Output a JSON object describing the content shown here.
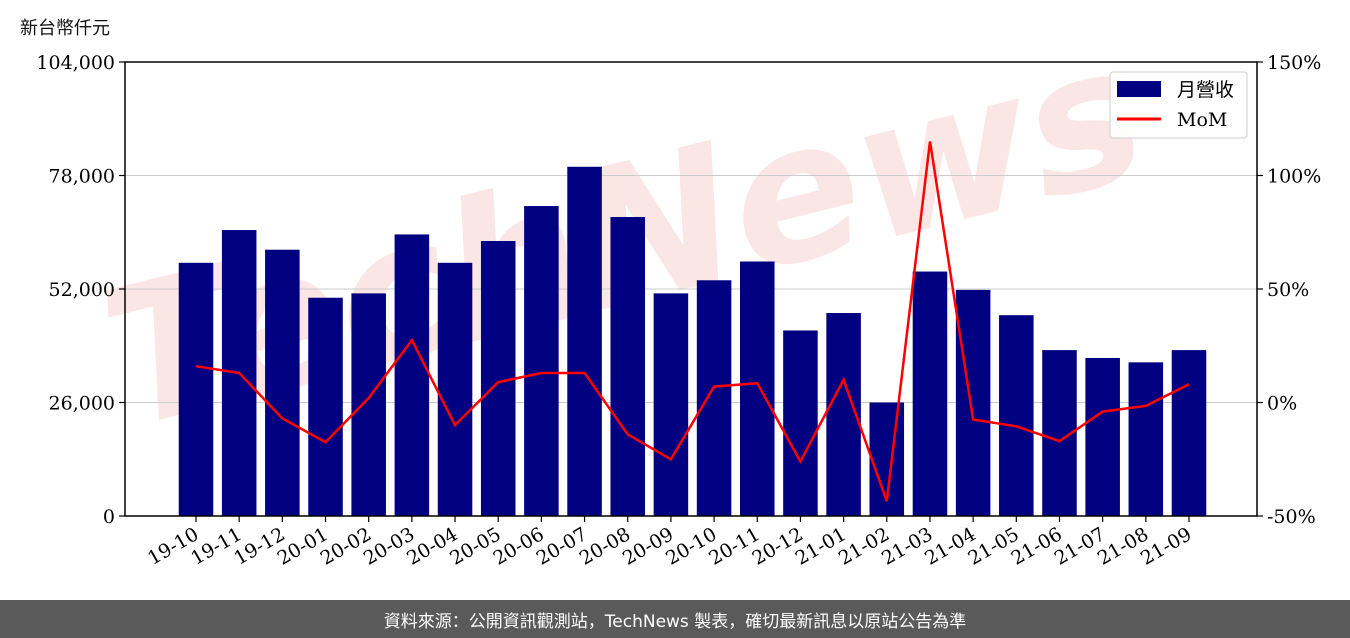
{
  "chart_data": {
    "type": "bar",
    "y_unit_label": "新台幣仟元",
    "categories": [
      "19-10",
      "19-11",
      "19-12",
      "20-01",
      "20-02",
      "20-03",
      "20-04",
      "20-05",
      "20-06",
      "20-07",
      "20-08",
      "20-09",
      "20-10",
      "20-11",
      "20-12",
      "21-01",
      "21-02",
      "21-03",
      "21-04",
      "21-05",
      "21-06",
      "21-07",
      "21-08",
      "21-09"
    ],
    "series": [
      {
        "name": "月營收",
        "type": "bar",
        "axis": "left",
        "color": "#000080",
        "values": [
          58000,
          65500,
          61000,
          50000,
          51000,
          64500,
          58000,
          63000,
          71000,
          80000,
          68500,
          51000,
          54000,
          58300,
          42500,
          46500,
          26000,
          56000,
          51800,
          46000,
          38000,
          36200,
          35200,
          38000
        ]
      },
      {
        "name": "MoM",
        "type": "line",
        "axis": "right",
        "color": "#ff0000",
        "values": [
          16,
          13,
          -7,
          -17.5,
          2,
          27.5,
          -10,
          9,
          13,
          13,
          -14,
          -25,
          7,
          8.5,
          -26,
          10,
          -43.5,
          115,
          -7.5,
          -10.5,
          -17,
          -4,
          -1.5,
          8
        ]
      }
    ],
    "y_left": {
      "ylim": [
        0,
        104000
      ],
      "ticks": [
        0,
        26000,
        52000,
        78000,
        104000
      ],
      "tick_labels": [
        "0",
        "26,000",
        "52,000",
        "78,000",
        "104,000"
      ]
    },
    "y_right": {
      "ylim": [
        -50,
        150
      ],
      "ticks": [
        -50,
        0,
        50,
        100,
        150
      ],
      "tick_labels": [
        "-50%",
        "0%",
        "50%",
        "100%",
        "150%"
      ]
    },
    "grid": true,
    "legend_position": "top-right",
    "watermark": "TechNews"
  },
  "footer": {
    "text": "資料來源：公開資訊觀測站，TechNews 製表，確切最新訊息以原站公告為準"
  }
}
